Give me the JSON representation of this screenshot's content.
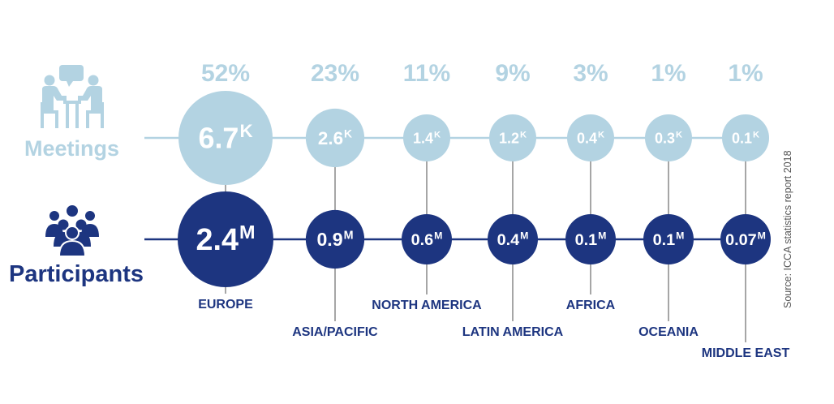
{
  "colors": {
    "meetings": "#b3d3e2",
    "participants": "#1d3580",
    "connector": "#777777",
    "source_text": "#555555"
  },
  "icons": {
    "meetings": "meeting-people-icon",
    "participants": "people-group-icon"
  },
  "labels": {
    "meetings": "Meetings",
    "participants": "Participants",
    "source": "Source: ICCA statistics report 2018"
  },
  "chart_data": {
    "type": "bubble",
    "categories": [
      "EUROPE",
      "ASIA/PACIFIC",
      "NORTH AMERICA",
      "LATIN AMERICA",
      "AFRICA",
      "OCEANIA",
      "MIDDLE EAST"
    ],
    "share_labels": [
      "52%",
      "23%",
      "11%",
      "9%",
      "3%",
      "1%",
      "1%"
    ],
    "series": [
      {
        "name": "Meetings",
        "values": [
          6.7,
          2.6,
          1.4,
          1.2,
          0.4,
          0.3,
          0.1
        ],
        "unit": "K",
        "value_labels": [
          "6.7",
          "2.6",
          "1.4",
          "1.2",
          "0.4",
          "0.3",
          "0.1"
        ]
      },
      {
        "name": "Participants",
        "values": [
          2.4,
          0.9,
          0.6,
          0.4,
          0.1,
          0.1,
          0.07
        ],
        "unit": "M",
        "value_labels": [
          "2.4",
          "0.9",
          "0.6",
          "0.4",
          "0.1",
          "0.1",
          "0.07"
        ]
      }
    ]
  }
}
